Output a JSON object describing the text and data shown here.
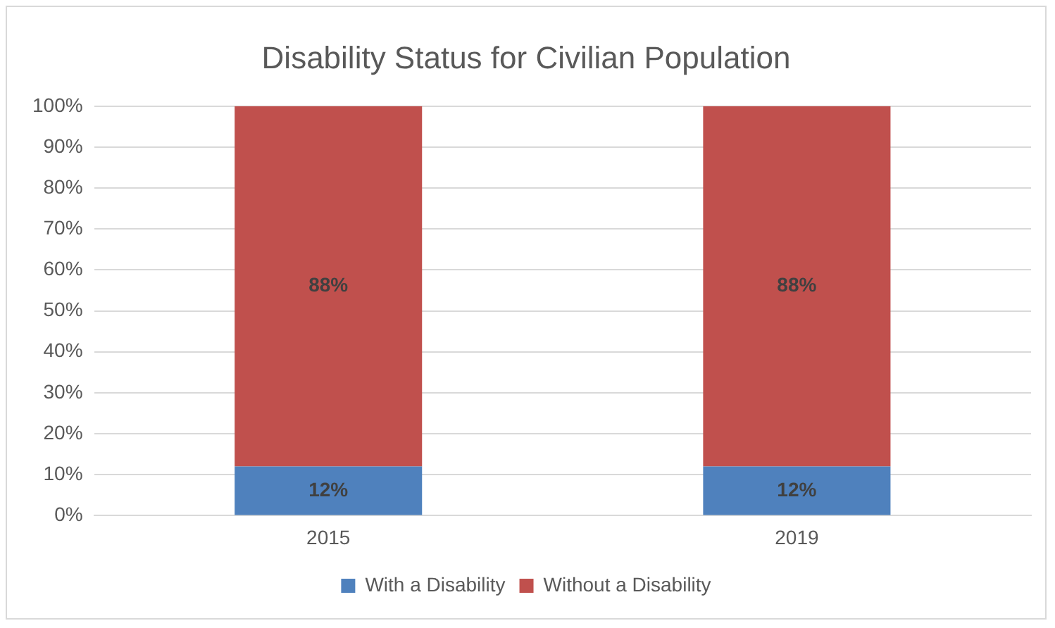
{
  "chart_data": {
    "type": "bar",
    "title": "Disability Status for Civilian Population",
    "categories": [
      "2015",
      "2019"
    ],
    "series": [
      {
        "name": "With a Disability",
        "color": "#4f81bd",
        "values": [
          12,
          12
        ]
      },
      {
        "name": "Without a Disability",
        "color": "#c0504d",
        "values": [
          88,
          88
        ]
      }
    ],
    "stacked": true,
    "ylim": [
      0,
      100
    ],
    "yticks": [
      {
        "value": 0,
        "label": "0%"
      },
      {
        "value": 10,
        "label": "10%"
      },
      {
        "value": 20,
        "label": "20%"
      },
      {
        "value": 30,
        "label": "30%"
      },
      {
        "value": 40,
        "label": "40%"
      },
      {
        "value": 50,
        "label": "50%"
      },
      {
        "value": 60,
        "label": "60%"
      },
      {
        "value": 70,
        "label": "70%"
      },
      {
        "value": 80,
        "label": "80%"
      },
      {
        "value": 90,
        "label": "90%"
      },
      {
        "value": 100,
        "label": "100%"
      }
    ],
    "value_labels": [
      [
        "12%",
        "12%"
      ],
      [
        "88%",
        "88%"
      ]
    ],
    "grid": "y",
    "legend": "bottom"
  }
}
